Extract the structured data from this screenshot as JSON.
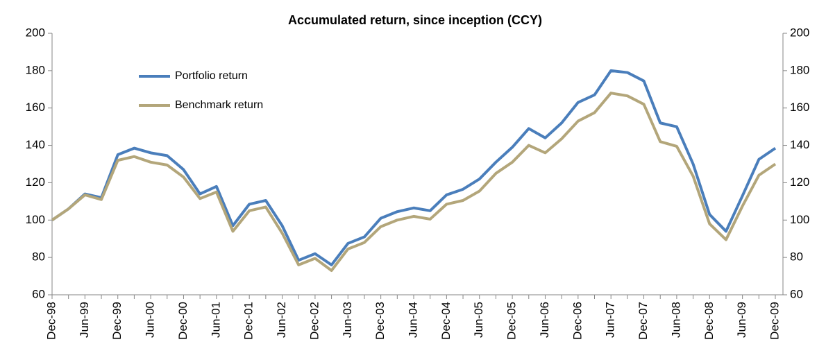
{
  "chart_data": {
    "type": "line",
    "title": "Accumulated return, since inception (CCY)",
    "categories": [
      "Dec-98",
      null,
      "Jun-99",
      null,
      "Dec-99",
      null,
      "Jun-00",
      null,
      "Dec-00",
      null,
      "Jun-01",
      null,
      "Dec-01",
      null,
      "Jun-02",
      null,
      "Dec-02",
      null,
      "Jun-03",
      null,
      "Dec-03",
      null,
      "Jun-04",
      null,
      "Dec-04",
      null,
      "Jun-05",
      null,
      "Dec-05",
      null,
      "Jun-06",
      null,
      "Dec-06",
      null,
      "Jun-07",
      null,
      "Dec-07",
      null,
      "Jun-08",
      null,
      "Dec-08",
      null,
      "Jun-09",
      null,
      "Dec-09"
    ],
    "series": [
      {
        "name": "Portfolio return",
        "color": "#4a7ebb",
        "values": [
          100,
          106,
          114,
          112,
          135,
          138.5,
          136,
          134.5,
          127,
          114,
          118,
          97,
          108.5,
          110.5,
          97,
          78.5,
          82,
          76,
          87.5,
          91,
          101,
          104.5,
          106.5,
          105,
          113.5,
          116.5,
          122,
          131,
          139,
          149,
          144,
          152,
          163,
          167,
          180,
          179,
          174.5,
          152,
          150,
          130,
          103,
          94,
          113,
          132.5,
          138.5
        ]
      },
      {
        "name": "Benchmark return",
        "color": "#b3a67a",
        "values": [
          100,
          106,
          113.5,
          111,
          132,
          134,
          131,
          129.5,
          123,
          111.5,
          115,
          94,
          105,
          107,
          93,
          76,
          79.5,
          73,
          84.5,
          88,
          96.5,
          100,
          102,
          100.5,
          108.5,
          110.5,
          115.5,
          125,
          131,
          140,
          136,
          143.5,
          153,
          157.5,
          168,
          166.5,
          162,
          142,
          139.5,
          123.5,
          98,
          89.5,
          107.5,
          124,
          130
        ]
      }
    ],
    "ylim": [
      60,
      200
    ],
    "yticks": [
      60,
      80,
      100,
      120,
      140,
      160,
      180,
      200
    ],
    "y2lim": [
      60,
      200
    ],
    "y2ticks": [
      60,
      80,
      100,
      120,
      140,
      160,
      180,
      200
    ],
    "legend": "upper left",
    "grid": false
  }
}
